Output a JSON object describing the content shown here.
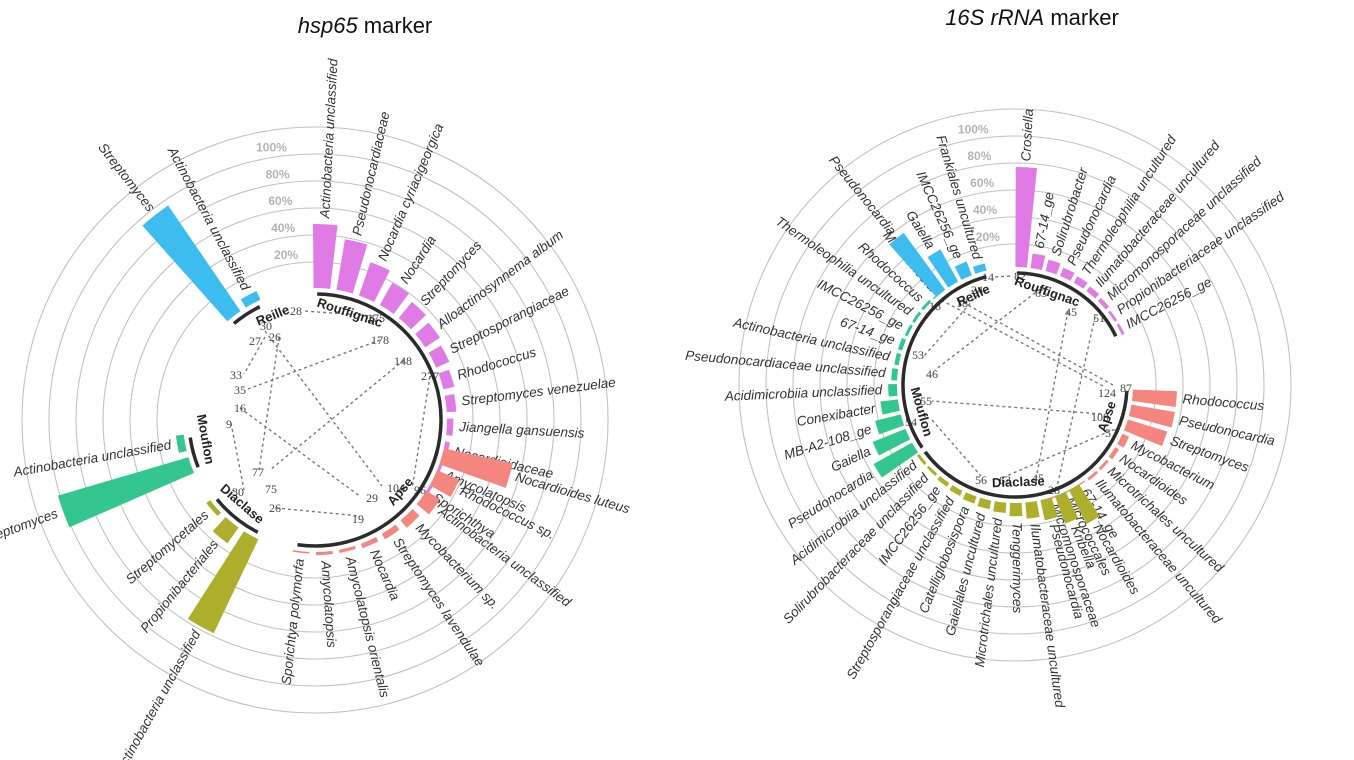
{
  "chart_data": [
    {
      "type": "bar",
      "subtype": "circular-barplot",
      "title_italic": "hsp65",
      "title_rest": " marker",
      "percent_ticks": [
        "20%",
        "40%",
        "60%",
        "80%",
        "100%"
      ],
      "grid": true,
      "colors": {
        "Rouffignac": "#e07be6",
        "Apse": "#f4867f",
        "Diaclase": "#adae2c",
        "Mouflon": "#34c690",
        "Reille": "#3dbcef"
      },
      "sites": [
        {
          "name": "Rouffignac",
          "categories": [
            "Actinobacteria unclassified",
            "Pseudonocardiaceae",
            "Nocardia cyriacigeorgica",
            "Nocardia",
            "Streptomyces",
            "Alloactinosynnema album",
            "Streptosporangiaceae",
            "Rhodococcus",
            "Streptomyces venezuelae",
            "Jiangella gansuensis",
            "Nocardioidaceae",
            "Amycolatopsis",
            "Sporichthya"
          ],
          "values": [
            40,
            32,
            22,
            16,
            13,
            11,
            9,
            7,
            6,
            4,
            3,
            2,
            2
          ]
        },
        {
          "name": "Apse",
          "categories": [
            "Nocardioides luteus",
            "Rhodococcus sp.",
            "Actinobacteria unclassified",
            "Mycobacterium sp.",
            "Streptomyces lavendulae",
            "Nocardia",
            "Amycolatopsis orientalis",
            "Amycolatopsis",
            "Sporichtya polymorfa"
          ],
          "values": [
            44,
            15,
            10,
            6,
            4,
            3,
            2,
            2,
            1
          ]
        },
        {
          "name": "Diaclase",
          "categories": [
            "Actinobacteria unclassified",
            "Propionibacteriales",
            "Streptomycetales"
          ],
          "values": [
            65,
            12,
            3
          ]
        },
        {
          "name": "Mouflon",
          "categories": [
            "Streptomyces",
            "Actinobacteria unclassified"
          ],
          "values": [
            85,
            5
          ]
        },
        {
          "name": "Reille",
          "categories": [
            "Streptomyces",
            "Actinobacteria unclassified"
          ],
          "values": [
            80,
            6
          ]
        }
      ],
      "links": [
        {
          "a": "175",
          "b": "28"
        },
        {
          "a": "178",
          "b": "35"
        },
        {
          "a": "148",
          "b": "75"
        },
        {
          "a": "277",
          "b": "96"
        },
        {
          "a": "30",
          "b": "104"
        },
        {
          "a": "16",
          "b": "29"
        },
        {
          "a": "26",
          "b": "77"
        },
        {
          "a": "27",
          "b": "33"
        },
        {
          "a": "9",
          "b": "30"
        },
        {
          "a": "26",
          "b": "19"
        }
      ]
    },
    {
      "type": "bar",
      "subtype": "circular-barplot",
      "title_italic": "16S rRNA",
      "title_rest": " marker",
      "percent_ticks": [
        "20%",
        "40%",
        "60%",
        "80%",
        "100%"
      ],
      "grid": true,
      "colors": {
        "Rouffignac": "#e07be6",
        "Apse": "#f4867f",
        "Diaclase": "#adae2c",
        "Mouflon": "#34c690",
        "Reille": "#3dbcef"
      },
      "sites": [
        {
          "name": "Rouffignac",
          "categories": [
            "Crosiella",
            "67-14_ge",
            "Solirubrobacter",
            "Pseudonocardia",
            "Thermoleophilia uncultured",
            "Ilumatobacteraceae uncultured",
            "Micromonosporaceae unclassified",
            "Propionibacteriaceae unclassified",
            "IMCC26256_ge"
          ],
          "values": [
            68,
            10,
            8,
            6,
            5,
            4,
            3,
            2,
            2
          ]
        },
        {
          "name": "Apse",
          "categories": [
            "Rhodococcus",
            "Pseudonocardia",
            "Streptomyces",
            "Mycobacterium",
            "Nocardioides",
            "Microtrichales uncultured",
            "Ilumatobacteraceae uncultured",
            "67-14_ge",
            "Micrococcales",
            "Micromonosporaceae"
          ],
          "values": [
            30,
            30,
            28,
            5,
            3,
            2,
            2,
            1,
            1,
            1
          ]
        },
        {
          "name": "Diaclase",
          "categories": [
            "Nocardioides",
            "Kribella",
            "Pseudonocardia",
            "Ilumatobacteraceae uncultured",
            "Tenggerimyces",
            "Microtrichales uncultured",
            "Gaiellales uncultured",
            "Catelliglobosispora",
            "Streptosporangiaceae unclassified",
            "IMCC26256_ge",
            "Solirubrobacteraceae unclassified",
            "Acidimicrobiia unclassified"
          ],
          "values": [
            26,
            20,
            14,
            11,
            9,
            7,
            6,
            5,
            4,
            3,
            2,
            2
          ]
        },
        {
          "name": "Mouflon",
          "categories": [
            "Pseudonocardia",
            "Gaiella",
            "MB-A2-108_ge",
            "Conexibacter",
            "Acidimicrobiia unclassified",
            "Pseudonocardiaceae unclassified",
            "Actinobacteria unclassified",
            "67-14_ge",
            "IMCC26256_ge",
            "Thermoleophilia uncultured",
            "Rhodococcus",
            "Marmoricola"
          ],
          "values": [
            30,
            24,
            18,
            12,
            6,
            4,
            3,
            3,
            2,
            2,
            2,
            1
          ]
        },
        {
          "name": "Reille",
          "categories": [
            "Pseudonocardia",
            "Gaiella",
            "IMCC26256_ge",
            "Frankiales uncultured"
          ],
          "values": [
            48,
            25,
            10,
            5
          ]
        }
      ],
      "links": [
        {
          "a": "82",
          "b": "14"
        },
        {
          "a": "63",
          "b": "46"
        },
        {
          "a": "24",
          "b": "53"
        },
        {
          "a": "51",
          "b": "28"
        },
        {
          "a": "45",
          "b": "45"
        },
        {
          "a": "124",
          "b": "18"
        },
        {
          "a": "100",
          "b": "55"
        },
        {
          "a": "87",
          "b": "18"
        },
        {
          "a": "57",
          "b": "63"
        },
        {
          "a": "54",
          "b": "56"
        }
      ]
    }
  ]
}
